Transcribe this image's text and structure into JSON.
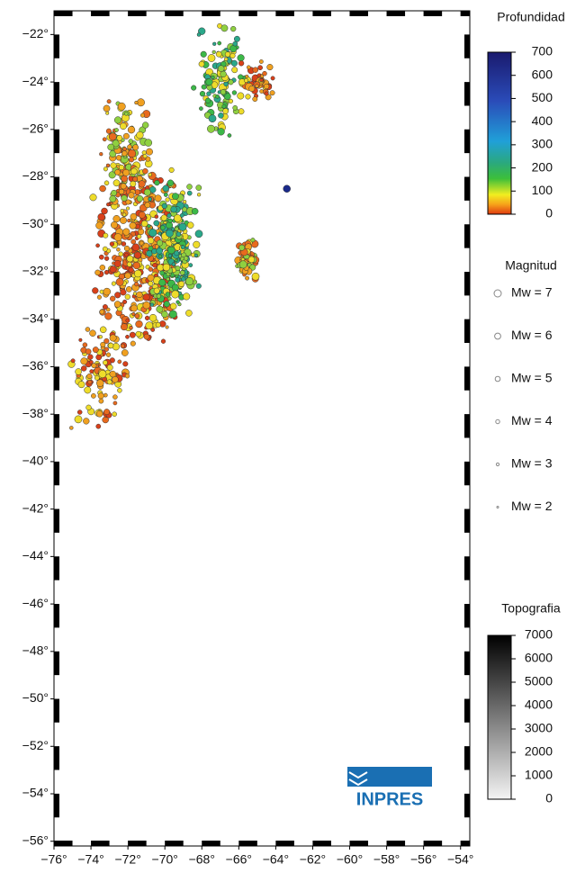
{
  "map": {
    "lat_ticks": [
      {
        "value": -22,
        "label": "−22°"
      },
      {
        "value": -24,
        "label": "−24°"
      },
      {
        "value": -26,
        "label": "−26°"
      },
      {
        "value": -28,
        "label": "−28°"
      },
      {
        "value": -30,
        "label": "−30°"
      },
      {
        "value": -32,
        "label": "−32°"
      },
      {
        "value": -34,
        "label": "−34°"
      },
      {
        "value": -36,
        "label": "−36°"
      },
      {
        "value": -38,
        "label": "−38°"
      },
      {
        "value": -40,
        "label": "−40°"
      },
      {
        "value": -42,
        "label": "−42°"
      },
      {
        "value": -44,
        "label": "−44°"
      },
      {
        "value": -46,
        "label": "−46°"
      },
      {
        "value": -48,
        "label": "−48°"
      },
      {
        "value": -50,
        "label": "−50°"
      },
      {
        "value": -52,
        "label": "−52°"
      },
      {
        "value": -54,
        "label": "−54°"
      },
      {
        "value": -56,
        "label": "−56°"
      }
    ],
    "lon_ticks": [
      {
        "value": -76,
        "label": "−76°"
      },
      {
        "value": -74,
        "label": "−74°"
      },
      {
        "value": -72,
        "label": "−72°"
      },
      {
        "value": -70,
        "label": "−70°"
      },
      {
        "value": -68,
        "label": "−68°"
      },
      {
        "value": -66,
        "label": "−66°"
      },
      {
        "value": -64,
        "label": "−64°"
      },
      {
        "value": -62,
        "label": "−62°"
      },
      {
        "value": -60,
        "label": "−60°"
      },
      {
        "value": -58,
        "label": "−58°"
      },
      {
        "value": -56,
        "label": "−56°"
      },
      {
        "value": -54,
        "label": "−54°"
      }
    ],
    "lat_range": [
      -21,
      -56.2
    ],
    "lon_range": [
      -76,
      -53.5
    ]
  },
  "legend": {
    "depth_title": "Profundidad",
    "depth_range": [
      0,
      700
    ],
    "depth_ticks": [
      0,
      100,
      200,
      300,
      400,
      500,
      600,
      700
    ],
    "magnitude_title": "Magnitud",
    "magnitudes": [
      "Mw = 7",
      "Mw = 6",
      "Mw = 5",
      "Mw = 4",
      "Mw = 3",
      "Mw = 2"
    ],
    "topo_title": "Topografia",
    "topo_range": [
      0,
      7000
    ],
    "topo_ticks": [
      0,
      1000,
      2000,
      3000,
      4000,
      5000,
      6000,
      7000
    ]
  },
  "logo": "INPRES"
}
